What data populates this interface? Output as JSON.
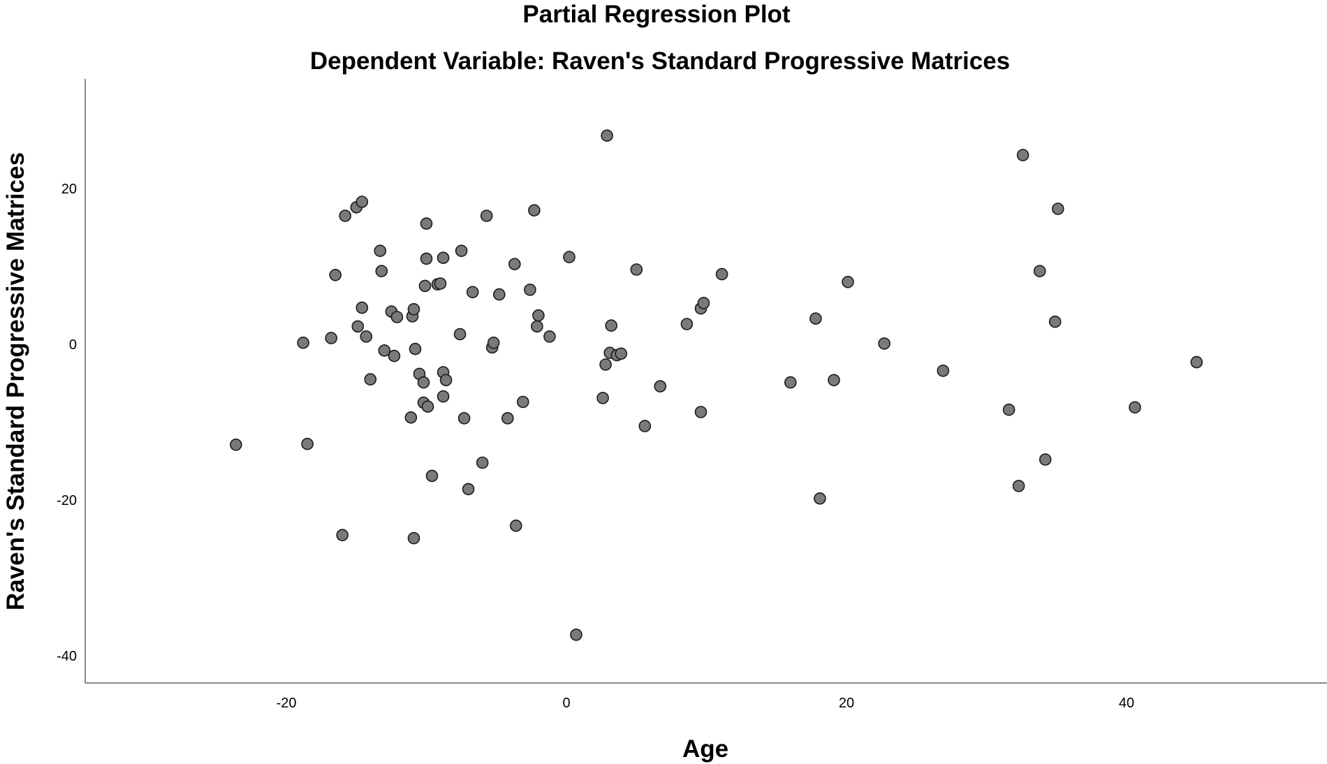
{
  "chart_data": {
    "type": "scatter",
    "title": "Partial Regression Plot",
    "subtitle": "Dependent Variable: Raven's Standard Progressive Matrices",
    "xlabel": "Age",
    "ylabel": "Raven's Standard Progressive Matrices",
    "xlim": [
      -34,
      53
    ],
    "ylim": [
      -43,
      34
    ],
    "xticks": [
      -20,
      0,
      20,
      40
    ],
    "yticks": [
      -40,
      -20,
      0,
      20
    ],
    "grid": false,
    "legend": "none",
    "marker_fill": "#7a7a7a",
    "marker_edge": "#1a1a1a",
    "points": [
      {
        "x": -23.6,
        "y": -12.9
      },
      {
        "x": -18.8,
        "y": 0.2
      },
      {
        "x": -18.5,
        "y": -12.8
      },
      {
        "x": -16.8,
        "y": 0.8
      },
      {
        "x": -16.5,
        "y": 8.9
      },
      {
        "x": -15.8,
        "y": 16.5
      },
      {
        "x": -16.0,
        "y": -24.5
      },
      {
        "x": -15.0,
        "y": 17.6
      },
      {
        "x": -14.6,
        "y": 18.3
      },
      {
        "x": -14.9,
        "y": 2.3
      },
      {
        "x": -14.6,
        "y": 4.7
      },
      {
        "x": -14.3,
        "y": 1.0
      },
      {
        "x": -14.0,
        "y": -4.5
      },
      {
        "x": -13.3,
        "y": 12.0
      },
      {
        "x": -13.2,
        "y": 9.4
      },
      {
        "x": -13.0,
        "y": -0.8
      },
      {
        "x": -12.5,
        "y": 4.2
      },
      {
        "x": -12.3,
        "y": -1.5
      },
      {
        "x": -12.1,
        "y": 3.5
      },
      {
        "x": -11.1,
        "y": -9.4
      },
      {
        "x": -11.0,
        "y": 3.6
      },
      {
        "x": -10.9,
        "y": 4.5
      },
      {
        "x": -10.8,
        "y": -0.6
      },
      {
        "x": -10.9,
        "y": -24.9
      },
      {
        "x": -10.5,
        "y": -3.8
      },
      {
        "x": -10.2,
        "y": -4.9
      },
      {
        "x": -10.2,
        "y": -7.5
      },
      {
        "x": -10.1,
        "y": 7.5
      },
      {
        "x": -10.0,
        "y": 11.0
      },
      {
        "x": -10.0,
        "y": 15.5
      },
      {
        "x": -9.9,
        "y": -8.0
      },
      {
        "x": -9.6,
        "y": -16.9
      },
      {
        "x": -9.2,
        "y": 7.7
      },
      {
        "x": -9.0,
        "y": 7.8
      },
      {
        "x": -8.8,
        "y": 11.1
      },
      {
        "x": -8.8,
        "y": -3.6
      },
      {
        "x": -8.8,
        "y": -6.7
      },
      {
        "x": -8.6,
        "y": -4.6
      },
      {
        "x": -7.6,
        "y": 1.3
      },
      {
        "x": -7.5,
        "y": 12.0
      },
      {
        "x": -7.3,
        "y": -9.5
      },
      {
        "x": -7.0,
        "y": -18.6
      },
      {
        "x": -6.7,
        "y": 6.7
      },
      {
        "x": -6.0,
        "y": -15.2
      },
      {
        "x": -5.7,
        "y": 16.5
      },
      {
        "x": -5.3,
        "y": -0.4
      },
      {
        "x": -5.2,
        "y": 0.2
      },
      {
        "x": -4.8,
        "y": 6.4
      },
      {
        "x": -4.2,
        "y": -9.5
      },
      {
        "x": -3.7,
        "y": 10.3
      },
      {
        "x": -3.6,
        "y": -23.3
      },
      {
        "x": -3.1,
        "y": -7.4
      },
      {
        "x": -2.6,
        "y": 7.0
      },
      {
        "x": -2.3,
        "y": 17.2
      },
      {
        "x": -2.1,
        "y": 2.3
      },
      {
        "x": -2.0,
        "y": 3.7
      },
      {
        "x": -1.2,
        "y": 1.0
      },
      {
        "x": 0.2,
        "y": 11.2
      },
      {
        "x": 0.7,
        "y": -37.3
      },
      {
        "x": 2.6,
        "y": -6.9
      },
      {
        "x": 2.8,
        "y": -2.6
      },
      {
        "x": 2.9,
        "y": 26.8
      },
      {
        "x": 3.1,
        "y": -1.1
      },
      {
        "x": 3.2,
        "y": 2.4
      },
      {
        "x": 3.6,
        "y": -1.4
      },
      {
        "x": 3.9,
        "y": -1.2
      },
      {
        "x": 5.0,
        "y": 9.6
      },
      {
        "x": 5.6,
        "y": -10.5
      },
      {
        "x": 6.7,
        "y": -5.4
      },
      {
        "x": 8.6,
        "y": 2.6
      },
      {
        "x": 9.6,
        "y": -8.7
      },
      {
        "x": 9.6,
        "y": 4.6
      },
      {
        "x": 9.8,
        "y": 5.3
      },
      {
        "x": 11.1,
        "y": 9.0
      },
      {
        "x": 16.0,
        "y": -4.9
      },
      {
        "x": 17.8,
        "y": 3.3
      },
      {
        "x": 18.1,
        "y": -19.8
      },
      {
        "x": 19.1,
        "y": -4.6
      },
      {
        "x": 20.1,
        "y": 8.0
      },
      {
        "x": 22.7,
        "y": 0.1
      },
      {
        "x": 26.9,
        "y": -3.4
      },
      {
        "x": 31.6,
        "y": -8.4
      },
      {
        "x": 32.3,
        "y": -18.2
      },
      {
        "x": 32.6,
        "y": 24.3
      },
      {
        "x": 33.8,
        "y": 9.4
      },
      {
        "x": 34.2,
        "y": -14.8
      },
      {
        "x": 34.9,
        "y": 2.9
      },
      {
        "x": 35.1,
        "y": 17.4
      },
      {
        "x": 40.6,
        "y": -8.1
      },
      {
        "x": 45.0,
        "y": -2.3
      }
    ]
  }
}
